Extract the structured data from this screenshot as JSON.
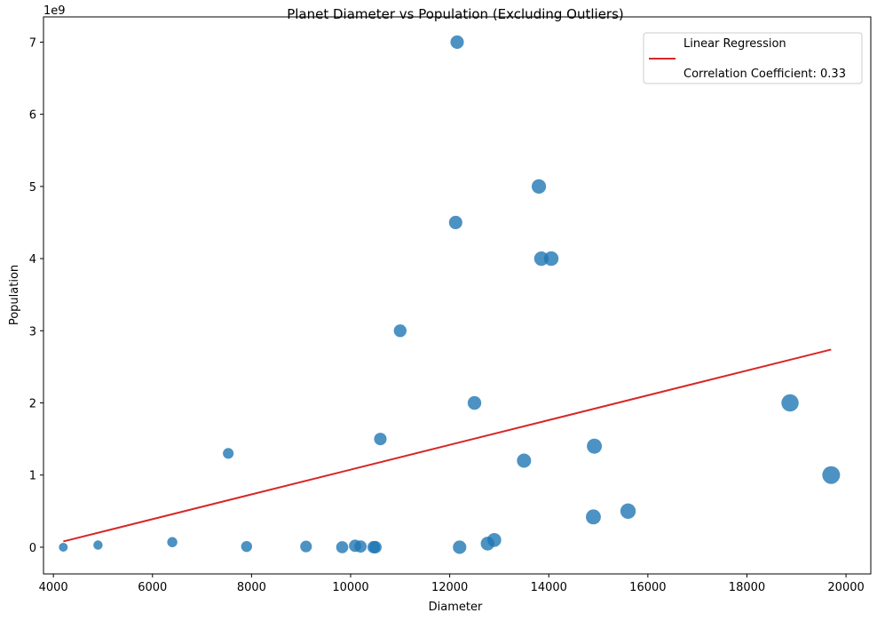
{
  "chart_data": {
    "type": "scatter",
    "title": "Planet Diameter vs Population (Excluding Outliers)",
    "xlabel": "Diameter",
    "ylabel": "Population",
    "y_offset_label": "1e9",
    "xlim": [
      3800,
      20500
    ],
    "ylim": [
      -0.37,
      7.35
    ],
    "x_ticks": [
      4000,
      6000,
      8000,
      10000,
      12000,
      14000,
      16000,
      18000,
      20000
    ],
    "y_ticks": [
      0,
      1,
      2,
      3,
      4,
      5,
      6,
      7
    ],
    "y_unit_multiplier": 1000000000,
    "point_color": "#1f77b4",
    "line_color": "#d62728",
    "points": [
      {
        "x": 4200,
        "y": 0.0
      },
      {
        "x": 4900,
        "y": 0.03
      },
      {
        "x": 6400,
        "y": 0.07
      },
      {
        "x": 7530,
        "y": 1.3
      },
      {
        "x": 7900,
        "y": 0.01
      },
      {
        "x": 9100,
        "y": 0.01
      },
      {
        "x": 9830,
        "y": 0.0
      },
      {
        "x": 10090,
        "y": 0.02
      },
      {
        "x": 10200,
        "y": 0.01
      },
      {
        "x": 10465,
        "y": 0.0
      },
      {
        "x": 10500,
        "y": 0.0
      },
      {
        "x": 10600,
        "y": 1.5
      },
      {
        "x": 11000,
        "y": 3.0
      },
      {
        "x": 12120,
        "y": 4.5
      },
      {
        "x": 12150,
        "y": 7.0
      },
      {
        "x": 12200,
        "y": 0.0
      },
      {
        "x": 12500,
        "y": 2.0
      },
      {
        "x": 12765,
        "y": 0.05
      },
      {
        "x": 12900,
        "y": 0.1
      },
      {
        "x": 13500,
        "y": 1.2
      },
      {
        "x": 13800,
        "y": 5.0
      },
      {
        "x": 13850,
        "y": 4.0
      },
      {
        "x": 14050,
        "y": 4.0
      },
      {
        "x": 14900,
        "y": 0.42
      },
      {
        "x": 14920,
        "y": 1.4
      },
      {
        "x": 15600,
        "y": 0.5
      },
      {
        "x": 18870,
        "y": 2.0
      },
      {
        "x": 19700,
        "y": 1.0
      }
    ],
    "regression": {
      "x": [
        4200,
        19700
      ],
      "y": [
        0.08,
        2.74
      ]
    },
    "legend": {
      "placement": "top-right",
      "entries": [
        "Linear Regression",
        "Correlation Coefficient: 0.33"
      ]
    },
    "grid": false
  }
}
